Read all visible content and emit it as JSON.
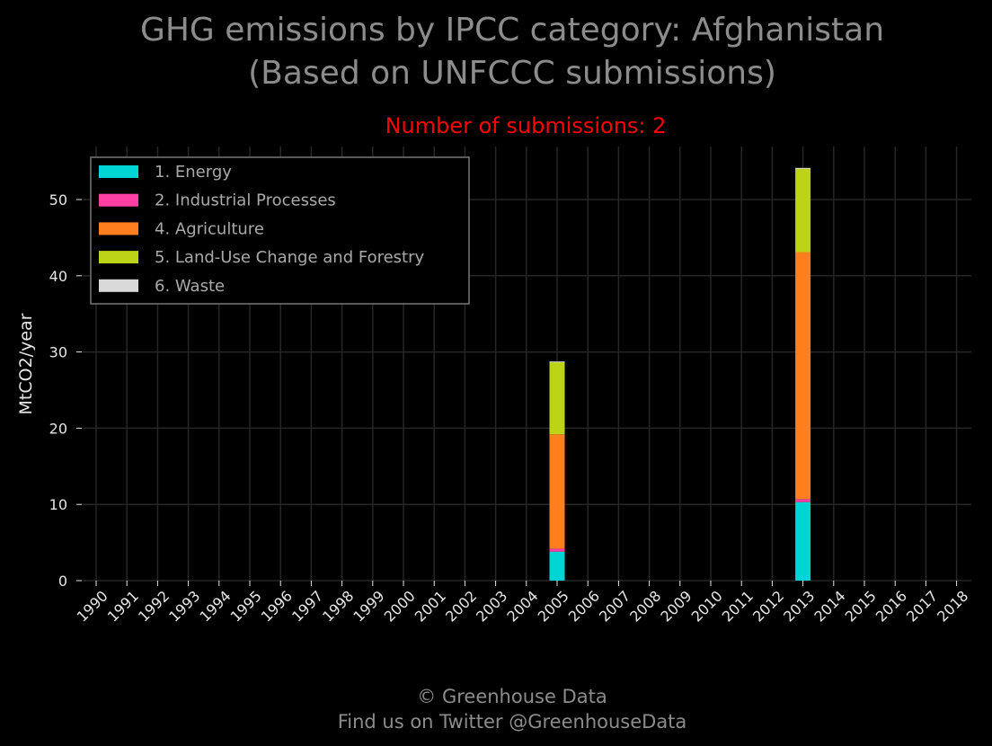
{
  "chart_data": {
    "type": "bar",
    "stacked": true,
    "title": "GHG emissions by IPCC category: Afghanistan",
    "title_line2": "(Based on UNFCCC submissions)",
    "subtitle": "Number of submissions: 2",
    "ylabel": "MtCO2/year",
    "xlabel": "",
    "ylim": [
      0,
      57
    ],
    "yticks": [
      0,
      10,
      20,
      30,
      40,
      50
    ],
    "categories": [
      "1990",
      "1991",
      "1992",
      "1993",
      "1994",
      "1995",
      "1996",
      "1997",
      "1998",
      "1999",
      "2000",
      "2001",
      "2002",
      "2003",
      "2004",
      "2005",
      "2006",
      "2007",
      "2008",
      "2009",
      "2010",
      "2011",
      "2012",
      "2013",
      "2014",
      "2015",
      "2016",
      "2017",
      "2018"
    ],
    "series": [
      {
        "name": "1. Energy",
        "color": "#00d5d5",
        "values": [
          0,
          0,
          0,
          0,
          0,
          0,
          0,
          0,
          0,
          0,
          0,
          0,
          0,
          0,
          0,
          3.8,
          0,
          0,
          0,
          0,
          0,
          0,
          0,
          10.3,
          0,
          0,
          0,
          0,
          0
        ]
      },
      {
        "name": "2. Industrial Processes",
        "color": "#ff3fa4",
        "values": [
          0,
          0,
          0,
          0,
          0,
          0,
          0,
          0,
          0,
          0,
          0,
          0,
          0,
          0,
          0,
          0.4,
          0,
          0,
          0,
          0,
          0,
          0,
          0,
          0.4,
          0,
          0,
          0,
          0,
          0
        ]
      },
      {
        "name": "4. Agriculture",
        "color": "#ff7f1e",
        "values": [
          0,
          0,
          0,
          0,
          0,
          0,
          0,
          0,
          0,
          0,
          0,
          0,
          0,
          0,
          0,
          15.0,
          0,
          0,
          0,
          0,
          0,
          0,
          0,
          32.4,
          0,
          0,
          0,
          0,
          0
        ]
      },
      {
        "name": "5. Land-Use Change and Forestry",
        "color": "#bcd318",
        "values": [
          0,
          0,
          0,
          0,
          0,
          0,
          0,
          0,
          0,
          0,
          0,
          0,
          0,
          0,
          0,
          9.5,
          0,
          0,
          0,
          0,
          0,
          0,
          0,
          11.0,
          0,
          0,
          0,
          0,
          0
        ]
      },
      {
        "name": "6. Waste",
        "color": "#d9d9d9",
        "values": [
          0,
          0,
          0,
          0,
          0,
          0,
          0,
          0,
          0,
          0,
          0,
          0,
          0,
          0,
          0,
          0.05,
          0,
          0,
          0,
          0,
          0,
          0,
          0,
          0.05,
          0,
          0,
          0,
          0,
          0
        ]
      }
    ],
    "grid": true,
    "legend_position": "upper-left"
  },
  "footer": {
    "line1": "© Greenhouse Data",
    "line2": "Find us on Twitter @GreenhouseData"
  },
  "colors": {
    "background": "#000000",
    "title": "#8c8c8c",
    "subtitle": "#ff0000",
    "grid": "#262626",
    "ticks": "#e6e6e6"
  }
}
